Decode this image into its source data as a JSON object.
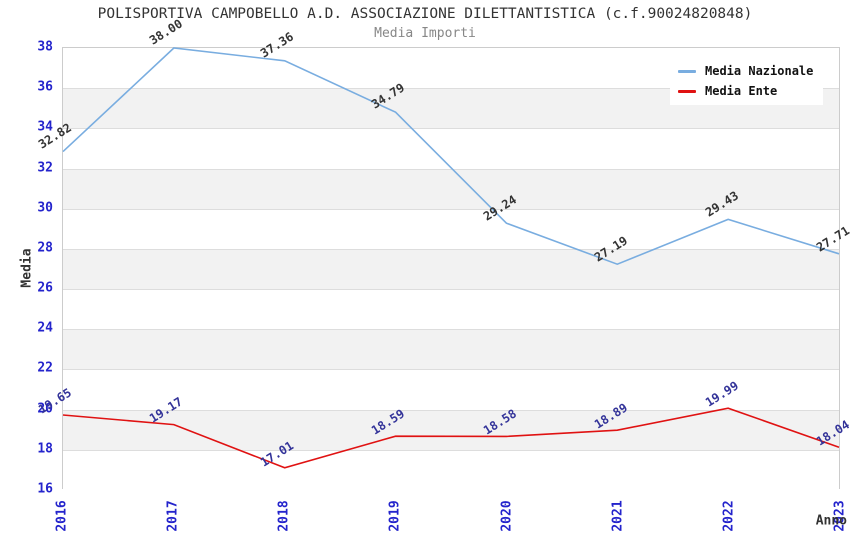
{
  "chart_data": {
    "type": "line",
    "title": "POLISPORTIVA CAMPOBELLO A.D. ASSOCIAZIONE DILETTANTISTICA (c.f.90024820848)",
    "subtitle": "Media Importi",
    "xlabel": "Anno",
    "ylabel": "Media",
    "categories": [
      "2016",
      "2017",
      "2018",
      "2019",
      "2020",
      "2021",
      "2022",
      "2023"
    ],
    "ylim": [
      16,
      38
    ],
    "ytick_step": 2,
    "grid": "horizontal-bands",
    "legend_position": "top-right",
    "value_label_format": "2-decimals",
    "series": [
      {
        "name": "Media Nazionale",
        "color": "#79ade0",
        "label_color": "#333333",
        "values": [
          32.82,
          38.0,
          37.36,
          34.79,
          29.24,
          27.19,
          29.43,
          27.71
        ]
      },
      {
        "name": "Media Ente",
        "color": "#e01212",
        "label_color": "#333399",
        "values": [
          19.65,
          19.17,
          17.01,
          18.59,
          18.58,
          18.89,
          19.99,
          18.04
        ]
      }
    ]
  },
  "colors": {
    "tick_label": "#2424cc",
    "title": "#333333",
    "subtitle": "#878787",
    "band_gray": "#f2f2f2",
    "gridline": "#dddddd",
    "plot_border": "#cccccc",
    "background": "#ffffff"
  }
}
